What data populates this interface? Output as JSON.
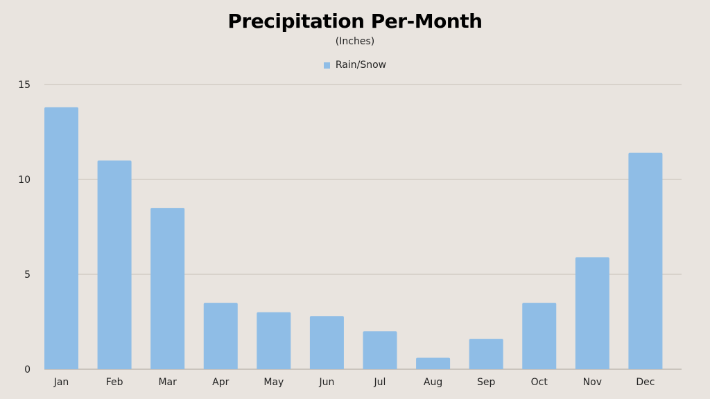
{
  "chart_data": {
    "type": "bar",
    "title": "Precipitation Per-Month",
    "subtitle": "(Inches)",
    "xlabel": "",
    "ylabel": "",
    "categories": [
      "Jan",
      "Feb",
      "Mar",
      "Apr",
      "May",
      "Jun",
      "Jul",
      "Aug",
      "Sep",
      "Oct",
      "Nov",
      "Dec"
    ],
    "series": [
      {
        "name": "Rain/Snow",
        "values": [
          13.8,
          11.0,
          8.5,
          3.5,
          3.0,
          2.8,
          2.0,
          0.6,
          1.6,
          3.5,
          5.9,
          11.4
        ]
      }
    ],
    "ylim": [
      0,
      15
    ],
    "yticks": [
      0,
      5,
      10,
      15
    ],
    "grid": true,
    "legend_position": "top-center",
    "colors": {
      "bar": "#8fbde6",
      "grid": "#cdc6bf",
      "background": "#e9e4df"
    }
  }
}
